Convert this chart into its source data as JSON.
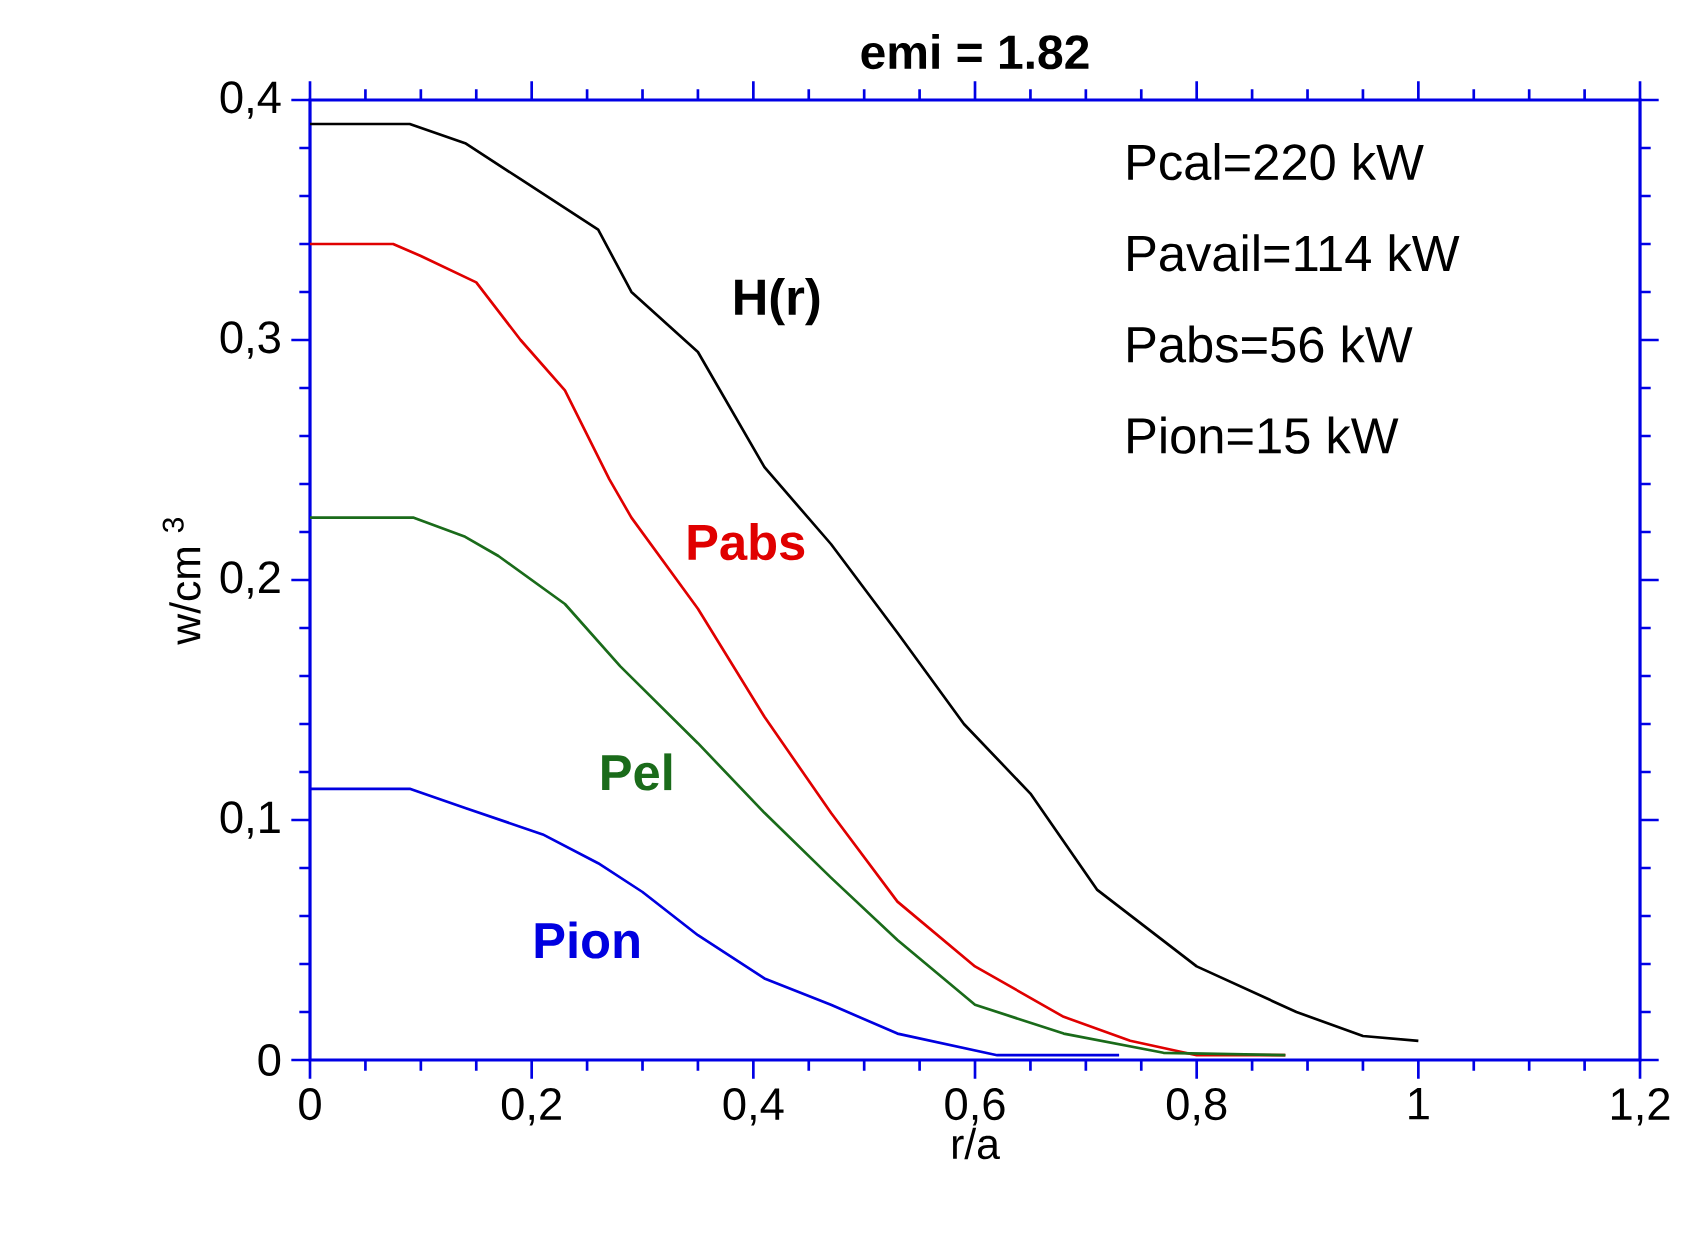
{
  "chart_data": {
    "type": "line",
    "title": "emi = 1.82",
    "xlabel": "r/a",
    "ylabel": "w/cm $^{3}$",
    "xlim": [
      0,
      1.2
    ],
    "ylim": [
      0,
      0.4
    ],
    "xticks": [
      0,
      {
        "value": 0.2,
        "label": "0,2"
      },
      {
        "value": 0.4,
        "label": "0,4"
      },
      {
        "value": 0.6,
        "label": "0,6"
      },
      {
        "value": 0.8,
        "label": "0,8"
      },
      1,
      {
        "value": 1.2,
        "label": "1,2"
      }
    ],
    "yticks": [
      0,
      {
        "value": 0.1,
        "label": "0,1"
      },
      {
        "value": 0.2,
        "label": "0,2"
      },
      {
        "value": 0.3,
        "label": "0,3"
      },
      {
        "value": 0.4,
        "label": "0,4"
      }
    ],
    "grid": false,
    "legend": false,
    "marker": "none",
    "line_style": "solid",
    "annotations": [
      "Pcal=220 kW",
      "Pavail=114 kW",
      "Pabs=56 kW",
      "Pion=15 kW"
    ],
    "series": [
      {
        "name": "H(r)",
        "color": "#000000",
        "x": [
          0,
          0.09,
          0.14,
          0.19,
          0.26,
          0.29,
          0.35,
          0.41,
          0.47,
          0.53,
          0.59,
          0.65,
          0.71,
          0.8,
          0.89,
          0.95,
          1.0
        ],
        "values": [
          0.39,
          0.39,
          0.382,
          0.367,
          0.346,
          0.32,
          0.295,
          0.247,
          0.215,
          0.178,
          0.14,
          0.111,
          0.071,
          0.039,
          0.02,
          0.01,
          0.008
        ]
      },
      {
        "name": "Pabs",
        "color": "#e00000",
        "x": [
          0,
          0.075,
          0.1,
          0.15,
          0.19,
          0.23,
          0.27,
          0.29,
          0.35,
          0.41,
          0.47,
          0.53,
          0.6,
          0.68,
          0.74,
          0.8,
          0.88
        ],
        "values": [
          0.34,
          0.34,
          0.335,
          0.324,
          0.3,
          0.279,
          0.242,
          0.226,
          0.188,
          0.143,
          0.103,
          0.066,
          0.039,
          0.018,
          0.008,
          0.002,
          0.002
        ]
      },
      {
        "name": "Pel",
        "color": "#1a6b1a",
        "x": [
          0,
          0.093,
          0.14,
          0.17,
          0.23,
          0.28,
          0.35,
          0.41,
          0.47,
          0.53,
          0.6,
          0.68,
          0.77,
          0.88
        ],
        "values": [
          0.226,
          0.226,
          0.218,
          0.21,
          0.19,
          0.164,
          0.132,
          0.103,
          0.076,
          0.05,
          0.023,
          0.011,
          0.003,
          0.002
        ]
      },
      {
        "name": "Pion",
        "color": "#0000e0",
        "x": [
          0,
          0.09,
          0.14,
          0.21,
          0.26,
          0.3,
          0.35,
          0.41,
          0.47,
          0.53,
          0.62,
          0.73
        ],
        "values": [
          0.113,
          0.113,
          0.105,
          0.094,
          0.082,
          0.07,
          0.052,
          0.034,
          0.023,
          0.011,
          0.002,
          0.002
        ]
      }
    ]
  }
}
